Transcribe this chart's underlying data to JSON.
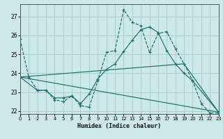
{
  "xlabel": "Humidex (Indice chaleur)",
  "background_color": "#cce8e8",
  "grid_color": "#aacfcf",
  "line_color": "#1e7070",
  "xlim": [
    0,
    23
  ],
  "ylim": [
    21.85,
    27.65
  ],
  "yticks": [
    22,
    23,
    24,
    25,
    26,
    27
  ],
  "xticks": [
    0,
    1,
    2,
    3,
    4,
    5,
    6,
    7,
    8,
    9,
    10,
    11,
    12,
    13,
    14,
    15,
    16,
    17,
    18,
    19,
    20,
    21,
    22,
    23
  ],
  "curve1_x": [
    0,
    1,
    2,
    3,
    4,
    5,
    6,
    7,
    8,
    9,
    10,
    11,
    12,
    13,
    14,
    15,
    16,
    17,
    18,
    19,
    20,
    21,
    22,
    23
  ],
  "curve1_y": [
    25.8,
    23.8,
    23.1,
    23.1,
    22.6,
    22.5,
    22.8,
    22.3,
    22.2,
    23.6,
    25.1,
    25.2,
    27.35,
    26.7,
    26.5,
    25.1,
    26.1,
    26.2,
    25.3,
    24.5,
    23.6,
    22.4,
    21.9,
    21.9
  ],
  "curve2_x": [
    0,
    2,
    3,
    4,
    5,
    6,
    7,
    8,
    9,
    10,
    11,
    12,
    13,
    14,
    15,
    16,
    17,
    18,
    19,
    20,
    23
  ],
  "curve2_y": [
    23.8,
    23.1,
    23.1,
    22.7,
    22.7,
    22.8,
    22.4,
    22.9,
    23.7,
    24.2,
    24.5,
    25.15,
    25.75,
    26.3,
    26.45,
    26.15,
    25.2,
    24.5,
    24.0,
    23.6,
    21.95
  ],
  "curve3_x": [
    0,
    19,
    23
  ],
  "curve3_y": [
    23.8,
    24.5,
    21.95
  ],
  "curve4_x": [
    0,
    23
  ],
  "curve4_y": [
    23.8,
    21.95
  ]
}
